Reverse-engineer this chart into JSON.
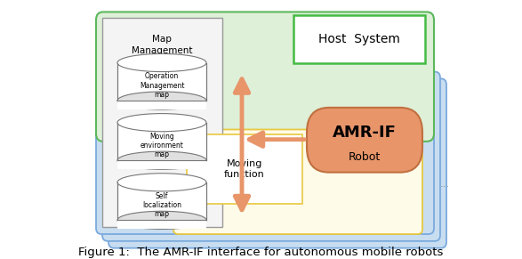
{
  "fig_width": 5.87,
  "fig_height": 2.91,
  "dpi": 100,
  "bg_color": "#ffffff",
  "caption": "Figure 1:  The AMR-IF interface for autonomous mobile robots",
  "caption_fontsize": 9.5,
  "host_system_label": "Host  System",
  "amr_if_label": "AMR-IF",
  "robot_label": "Robot",
  "moving_function_label": "Moving\nfunction",
  "map_management_label": "Map\nManagement",
  "db1_label": "Operation\nManagement\nmap",
  "db2_label": "Moving\nenvironment\nmap",
  "db3_label": "Self\nlocalization\nmap",
  "green_box_color": "#dff0d8",
  "green_box_edge": "#5cb85c",
  "blue_box_color": "#c8ddf0",
  "blue_box_edge": "#7aaadd",
  "yellow_box_color": "#fefbe8",
  "yellow_box_edge": "#e8c840",
  "white_box_color": "#f4f4f4",
  "white_box_edge": "#999999",
  "amr_ellipse_color": "#e8956a",
  "arrow_color": "#e8956a",
  "host_box_edge": "#44bb44",
  "dots_color": "#888888"
}
